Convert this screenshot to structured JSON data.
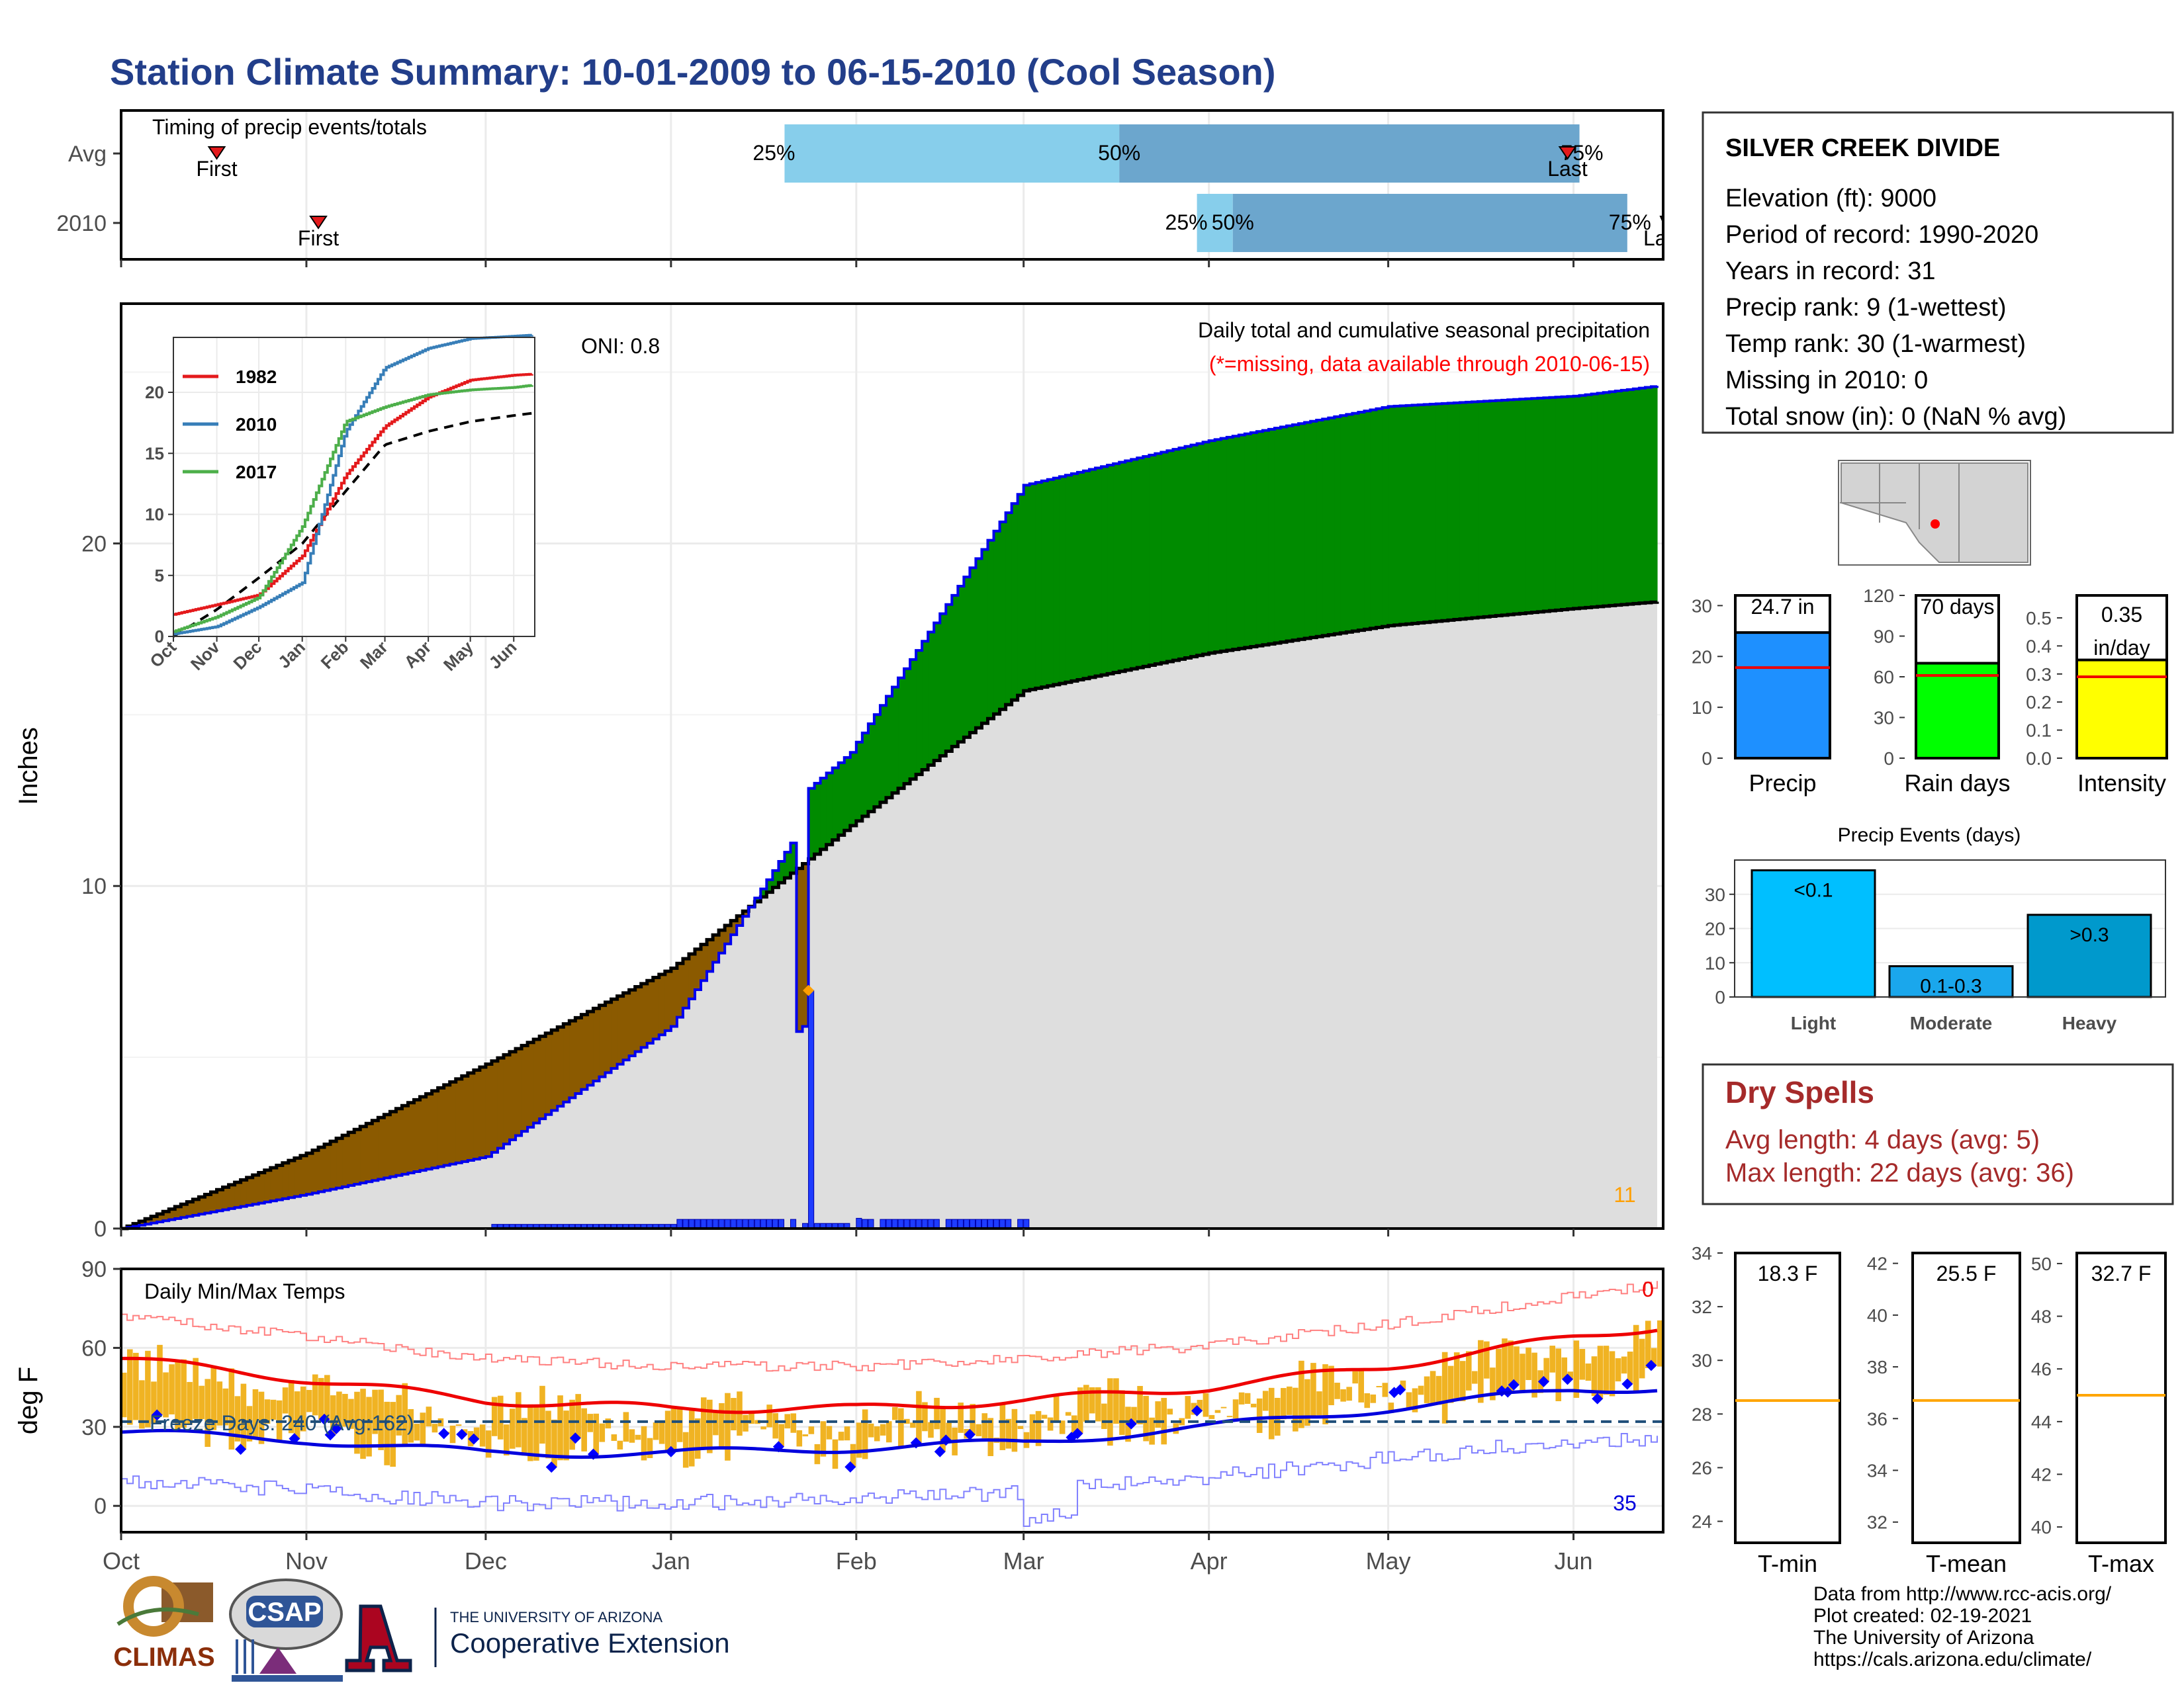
{
  "title": "Station Climate Summary: 10-01-2009 to 06-15-2010 (Cool Season)",
  "months": [
    "Oct",
    "Nov",
    "Dec",
    "Jan",
    "Feb",
    "Mar",
    "Apr",
    "May",
    "Jun"
  ],
  "timing": {
    "label": "Timing of precip events/totals",
    "rows": [
      {
        "name": "Avg",
        "first_label": "First",
        "last_label": "Last",
        "q25": "25%",
        "q50": "50%",
        "q75": "75%"
      },
      {
        "name": "2010",
        "first_label": "First",
        "last_label": "Last",
        "q25": "25%",
        "q50": "50%",
        "q75": "75%"
      }
    ]
  },
  "precip": {
    "ylabel": "Inches",
    "caption": "Daily total and cumulative seasonal precipitation",
    "missing_note": "(*=missing, data available through 2010-06-15)",
    "oni": "ONI: 0.8",
    "corner_count": "11",
    "y_ticks": [
      "0",
      "10",
      "20"
    ]
  },
  "inset": {
    "x_ticks": [
      "Oct",
      "Nov",
      "Dec",
      "Jan",
      "Feb",
      "Mar",
      "Apr",
      "May",
      "Jun"
    ],
    "y_ticks": [
      "0",
      "5",
      "10",
      "15",
      "20"
    ],
    "legend": [
      {
        "name": "1982",
        "color": "#e41a1c"
      },
      {
        "name": "2010",
        "color": "#377eb8"
      },
      {
        "name": "2017",
        "color": "#4daf4a"
      }
    ]
  },
  "temps": {
    "ylabel": "deg F",
    "label": "Daily Min/Max Temps",
    "freeze": "Freeze Days: 240 (Avg:162)",
    "count_hot": "0",
    "count_cold": "35",
    "y_ticks": [
      "0",
      "30",
      "60",
      "90"
    ]
  },
  "info": {
    "station": "SILVER CREEK DIVIDE",
    "lines": [
      "Elevation (ft): 9000",
      "Period of record: 1990-2020",
      "Years in record: 31",
      "Precip rank: 9 (1-wettest)",
      "Temp rank: 30 (1-warmest)",
      "Missing in 2010: 0",
      "Total snow (in): 0 (NaN % avg)"
    ]
  },
  "mini_bars": [
    {
      "label": "Precip",
      "value_text": "24.7 in",
      "ticks": [
        "0",
        "10",
        "20",
        "30"
      ],
      "color": "#1e90ff"
    },
    {
      "label": "Rain days",
      "value_text": "70 days",
      "ticks": [
        "0",
        "30",
        "60",
        "90",
        "120"
      ],
      "color": "#00ff00"
    },
    {
      "label": "Intensity",
      "value_text": "0.35 in/day",
      "ticks": [
        "0.0",
        "0.1",
        "0.2",
        "0.3",
        "0.4",
        "0.5"
      ],
      "color": "#ffff00"
    }
  ],
  "events": {
    "title": "Precip Events (days)",
    "y_ticks": [
      "0",
      "10",
      "20",
      "30"
    ],
    "bars": [
      {
        "cat": "Light",
        "label": "<0.1",
        "value": 37,
        "color": "#00bfff"
      },
      {
        "cat": "Moderate",
        "label": "0.1-0.3",
        "value": 9,
        "color": "#1aa7ec"
      },
      {
        "cat": "Heavy",
        "label": ">0.3",
        "value": 24,
        "color": "#0099cc"
      }
    ]
  },
  "dry": {
    "title": "Dry Spells",
    "avg": "Avg length: 4 days (avg: 5)",
    "max": "Max length: 22 days (avg: 36)"
  },
  "temp_boxes": [
    {
      "label": "T-min",
      "value_text": "18.3 F",
      "ticks": [
        "24",
        "26",
        "28",
        "30",
        "32",
        "34"
      ],
      "avg": 28.5
    },
    {
      "label": "T-mean",
      "value_text": "25.5 F",
      "ticks": [
        "32",
        "34",
        "36",
        "38",
        "40",
        "42"
      ],
      "avg": 36.7
    },
    {
      "label": "T-max",
      "value_text": "32.7 F",
      "ticks": [
        "40",
        "42",
        "44",
        "46",
        "48",
        "50"
      ],
      "avg": 45.0
    }
  ],
  "footer": [
    "Data from http://www.rcc-acis.org/",
    "Plot created: 02-19-2021",
    "The University of Arizona",
    "https://cals.arizona.edu/climate/"
  ],
  "logos": {
    "climas": "CLIMAS",
    "csap": "CSAP",
    "ua_small": "THE UNIVERSITY OF ARIZONA",
    "ua_big": "Cooperative Extension"
  },
  "chart_data": [
    {
      "type": "area",
      "title": "Daily total and cumulative seasonal precipitation",
      "ylabel": "Inches",
      "ylim": [
        0,
        27
      ],
      "x_dates": [
        "2009-10-01",
        "2009-11-01",
        "2009-12-01",
        "2010-01-01",
        "2010-02-01",
        "2010-03-01",
        "2010-04-01",
        "2010-05-01",
        "2010-06-01",
        "2010-06-15"
      ],
      "series": [
        {
          "values": [
            0.0,
            2.2,
            4.8,
            7.6,
            11.9,
            15.7,
            16.8,
            17.6,
            18.1,
            18.3
          ]
        },
        {
          "values": [
            0.0,
            1.0,
            2.1,
            5.9,
            14.2,
            21.7,
            23.0,
            24.0,
            24.3,
            24.6
          ]
        }
      ]
    },
    {
      "type": "bar",
      "title": "Precip Events (days)",
      "categories": [
        "Light",
        "Moderate",
        "Heavy"
      ],
      "values": [
        37,
        9,
        24
      ],
      "ylim": [
        0,
        40
      ]
    },
    {
      "type": "line",
      "title": "Daily Min/Max Temps",
      "ylabel": "deg F",
      "ylim": [
        -10,
        90
      ],
      "x_dates": [
        "2009-10-01",
        "2009-11-01",
        "2009-12-01",
        "2010-01-01",
        "2010-02-01",
        "2010-03-01",
        "2010-04-01",
        "2010-05-01",
        "2010-06-01",
        "2010-06-15"
      ],
      "series": [
        {
          "values": [
            56,
            48,
            40,
            37,
            37,
            40,
            45,
            53,
            64,
            68
          ]
        },
        {
          "values": [
            28,
            25,
            20,
            20,
            22,
            24,
            30,
            37,
            44,
            45
          ]
        }
      ]
    }
  ]
}
